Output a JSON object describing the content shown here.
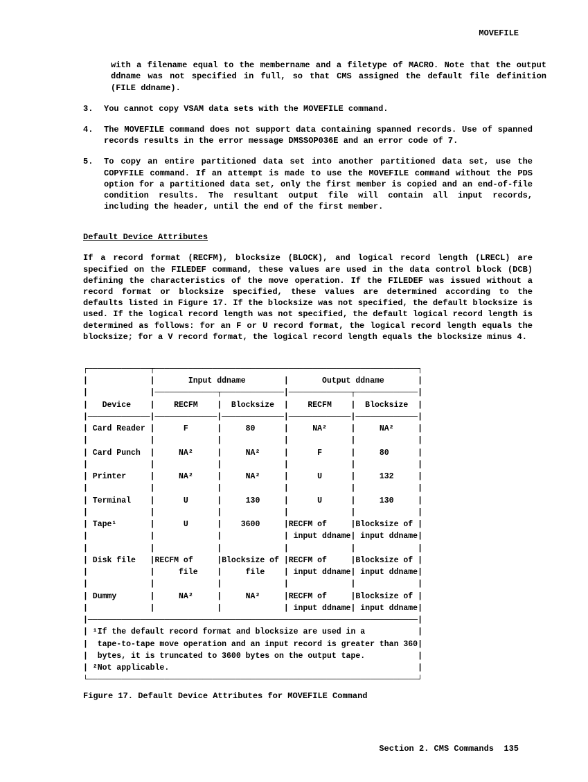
{
  "header": {
    "title": "MOVEFILE"
  },
  "continuation": "with a  filename equal to the  membername and a filetype  of MACRO. Note that the output ddname was not  specified in full, so that CMS assigned the default file definition (FILE ddname).",
  "items": [
    {
      "num": "3.",
      "text": "You cannot copy VSAM data sets with the MOVEFILE command."
    },
    {
      "num": "4.",
      "text": "The  MOVEFILE command  does  not  support data  containing  spanned records.   Use of  spanned  records results  in  the error  message DMSSOP036E and an error code of 7."
    },
    {
      "num": "5.",
      "text": "To copy  an entire  partitioned data  set into  another partitioned data set, use the  COPYFILE command.  If an attempt is  made to use the MOVEFILE command without the PDS  option for a partitioned data set, only the  first member is copied and  an end-of-file condition results.  The resultant output file will contain all input records, including the header, until the end of the first member."
    }
  ],
  "section_title": "Default Device Attributes",
  "body": "If a record format (RECFM), blocksize (BLOCK), and logical record length (LRECL) are specified  on the FILEDEF command, these values  are used in the data  control block  (DCB) defining  the characteristics of  the move operation.   If  the FILEDEF  was  issued  without  a record  format  or blocksize  specified,  these  values are  determined  according  to  the defaults listed in  Figure 17.  If the blocksize was  not specified, the default  blocksize  is used.   If  the  logical  record length  was  not specified, the default  logical record length is  determined as follows: for  an F  or U  record format,  the logical  record  length equals  the blocksize; for a  V record format, the logical record  length equals the blocksize minus 4.",
  "table": {
    "group_headers": {
      "col1": "Input ddname",
      "col2": "Output ddname"
    },
    "headers": {
      "device": "Device",
      "recfm_in": "RECFM",
      "block_in": "Blocksize",
      "recfm_out": "RECFM",
      "block_out": "Blocksize"
    },
    "rows": [
      {
        "device": "Card Reader",
        "recfm_in": "F",
        "block_in": "80",
        "recfm_out": "NA²",
        "block_out": "NA²"
      },
      {
        "device": "Card Punch",
        "recfm_in": "NA²",
        "block_in": "NA²",
        "recfm_out": "F",
        "block_out": "80"
      },
      {
        "device": "Printer",
        "recfm_in": "NA²",
        "block_in": "NA²",
        "recfm_out": "U",
        "block_out": "132"
      },
      {
        "device": "Terminal",
        "recfm_in": "U",
        "block_in": "130",
        "recfm_out": "U",
        "block_out": "130"
      },
      {
        "device": "Tape¹",
        "recfm_in": "U",
        "block_in": "3600",
        "recfm_out": "RECFM of\n input ddname",
        "block_out": "Blocksize of\n input ddname"
      },
      {
        "device": "Disk file",
        "recfm_in": "RECFM of\n file",
        "block_in": "Blocksize of\n file",
        "recfm_out": "RECFM of\n input ddname",
        "block_out": "Blocksize of\n input ddname"
      },
      {
        "device": "Dummy",
        "recfm_in": "NA²",
        "block_in": "NA²",
        "recfm_out": "RECFM of\n input ddname",
        "block_out": "Blocksize of\n input ddname"
      }
    ],
    "footnote1": "¹If the default record format and blocksize are used in a",
    "footnote1b": " tape-to-tape move operation and an input record is greater than 3600",
    "footnote1c": " bytes, it is truncated to 3600 bytes on the output tape.",
    "footnote2": "²Not applicable."
  },
  "caption": "Figure 17.  Default Device Attributes for MOVEFILE Command",
  "footer": {
    "section": "Section 2. CMS Commands",
    "page": "135"
  }
}
